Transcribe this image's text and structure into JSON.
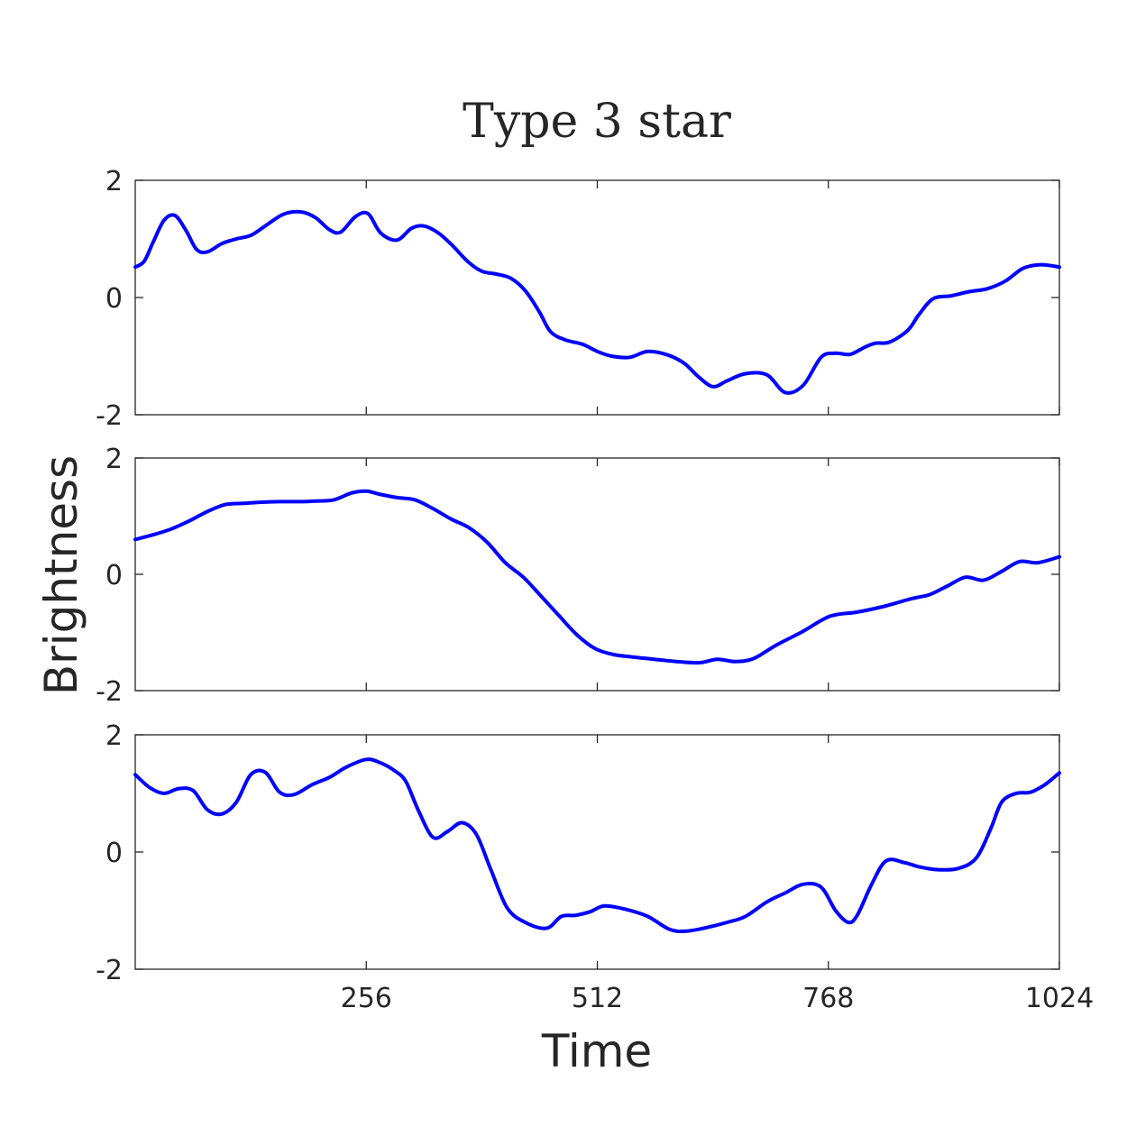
{
  "chart_data": {
    "type": "line",
    "title": "Type 3 star",
    "xlabel": "Time",
    "ylabel": "Brightness",
    "xlim": [
      0,
      1024
    ],
    "x_ticks": [
      256,
      512,
      768,
      1024
    ],
    "x_tick_labels": [
      "256",
      "512",
      "768",
      "1024"
    ],
    "ylim": [
      -2,
      2
    ],
    "y_ticks": [
      -2,
      0,
      2
    ],
    "y_tick_labels": [
      "-2",
      "0",
      "2"
    ],
    "grid": false,
    "line_color": "#0000ff",
    "panels": [
      {
        "x": [
          0,
          10,
          20,
          32,
          44,
          56,
          68,
          80,
          96,
          112,
          128,
          144,
          164,
          184,
          200,
          216,
          228,
          244,
          258,
          272,
          290,
          306,
          320,
          336,
          352,
          368,
          384,
          400,
          416,
          432,
          448,
          460,
          476,
          496,
          512,
          528,
          548,
          568,
          590,
          608,
          624,
          640,
          656,
          676,
          700,
          720,
          740,
          760,
          776,
          792,
          808,
          820,
          836,
          856,
          868,
          884,
          904,
          924,
          944,
          964,
          984,
          1004,
          1024
        ],
        "y": [
          0.52,
          0.62,
          0.95,
          1.32,
          1.4,
          1.15,
          0.82,
          0.78,
          0.92,
          1.0,
          1.06,
          1.22,
          1.42,
          1.46,
          1.36,
          1.15,
          1.12,
          1.38,
          1.43,
          1.1,
          0.98,
          1.18,
          1.22,
          1.1,
          0.88,
          0.62,
          0.45,
          0.4,
          0.33,
          0.12,
          -0.25,
          -0.58,
          -0.72,
          -0.8,
          -0.92,
          -1.0,
          -1.02,
          -0.92,
          -0.98,
          -1.12,
          -1.35,
          -1.52,
          -1.42,
          -1.3,
          -1.32,
          -1.62,
          -1.5,
          -1.02,
          -0.95,
          -0.97,
          -0.85,
          -0.78,
          -0.76,
          -0.56,
          -0.3,
          -0.02,
          0.03,
          0.1,
          0.15,
          0.28,
          0.5,
          0.56,
          0.52
        ]
      },
      {
        "x": [
          0,
          20,
          40,
          60,
          80,
          100,
          120,
          140,
          160,
          180,
          200,
          220,
          240,
          256,
          270,
          290,
          310,
          330,
          350,
          370,
          390,
          410,
          430,
          450,
          470,
          490,
          510,
          530,
          550,
          575,
          600,
          625,
          645,
          665,
          685,
          710,
          740,
          770,
          800,
          830,
          860,
          880,
          900,
          920,
          940,
          960,
          980,
          1000,
          1024
        ],
        "y": [
          0.6,
          0.68,
          0.78,
          0.92,
          1.08,
          1.2,
          1.22,
          1.24,
          1.25,
          1.25,
          1.26,
          1.28,
          1.4,
          1.43,
          1.38,
          1.32,
          1.28,
          1.13,
          0.95,
          0.8,
          0.55,
          0.2,
          -0.05,
          -0.38,
          -0.72,
          -1.05,
          -1.28,
          -1.38,
          -1.42,
          -1.46,
          -1.5,
          -1.52,
          -1.46,
          -1.5,
          -1.45,
          -1.22,
          -0.98,
          -0.72,
          -0.65,
          -0.55,
          -0.42,
          -0.35,
          -0.2,
          -0.05,
          -0.1,
          0.05,
          0.22,
          0.2,
          0.3
        ]
      },
      {
        "x": [
          0,
          16,
          32,
          48,
          64,
          80,
          96,
          112,
          128,
          144,
          160,
          176,
          196,
          216,
          234,
          256,
          272,
          288,
          300,
          314,
          330,
          346,
          362,
          378,
          394,
          412,
          432,
          456,
          472,
          488,
          504,
          520,
          544,
          568,
          592,
          610,
          630,
          656,
          676,
          700,
          720,
          740,
          760,
          776,
          790,
          800,
          816,
          832,
          852,
          868,
          888,
          912,
          932,
          948,
          960,
          976,
          992,
          1008,
          1024
        ],
        "y": [
          1.32,
          1.1,
          1.0,
          1.08,
          1.05,
          0.72,
          0.65,
          0.85,
          1.32,
          1.36,
          1.02,
          0.98,
          1.15,
          1.28,
          1.45,
          1.58,
          1.52,
          1.38,
          1.2,
          0.7,
          0.25,
          0.35,
          0.5,
          0.3,
          -0.3,
          -0.95,
          -1.2,
          -1.3,
          -1.1,
          -1.08,
          -1.02,
          -0.92,
          -0.98,
          -1.1,
          -1.32,
          -1.35,
          -1.3,
          -1.2,
          -1.1,
          -0.85,
          -0.7,
          -0.55,
          -0.6,
          -1.0,
          -1.2,
          -1.08,
          -0.55,
          -0.15,
          -0.18,
          -0.25,
          -0.3,
          -0.28,
          -0.1,
          0.4,
          0.85,
          1.0,
          1.02,
          1.15,
          1.35
        ]
      }
    ]
  }
}
